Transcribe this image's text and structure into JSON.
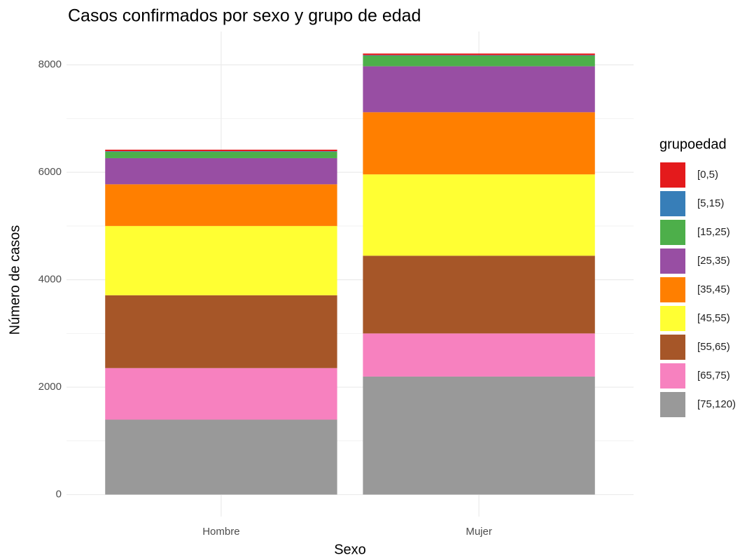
{
  "chart_data": {
    "type": "stacked_bar",
    "title": "Casos confirmados por sexo y grupo de edad",
    "x_label": "Sexo",
    "y_label": "Número de casos",
    "legend_title": "grupoedad",
    "legend": "right",
    "categories": [
      "Hombre",
      "Mujer"
    ],
    "series": [
      {
        "name": "[0,5)",
        "color": "#e41a1c",
        "values": [
          29,
          30
        ]
      },
      {
        "name": "[5,15)",
        "color": "#377eb8",
        "values": [
          10,
          10
        ]
      },
      {
        "name": "[15,25)",
        "color": "#4daf4a",
        "values": [
          119,
          197
        ]
      },
      {
        "name": "[25,35)",
        "color": "#984ea3",
        "values": [
          487,
          856
        ]
      },
      {
        "name": "[35,45)",
        "color": "#ff7f00",
        "values": [
          776,
          1157
        ]
      },
      {
        "name": "[45,55)",
        "color": "#ffff33",
        "values": [
          1289,
          1514
        ]
      },
      {
        "name": "[55,65)",
        "color": "#a65628",
        "values": [
          1356,
          1447
        ]
      },
      {
        "name": "[65,75)",
        "color": "#f781bf",
        "values": [
          960,
          803
        ]
      },
      {
        "name": "[75,120)",
        "color": "#999999",
        "values": [
          1395,
          2197
        ]
      }
    ],
    "ylim": [
      -410,
      8621
    ],
    "yticks": [
      0,
      2000,
      4000,
      6000,
      8000
    ],
    "grid": true
  }
}
